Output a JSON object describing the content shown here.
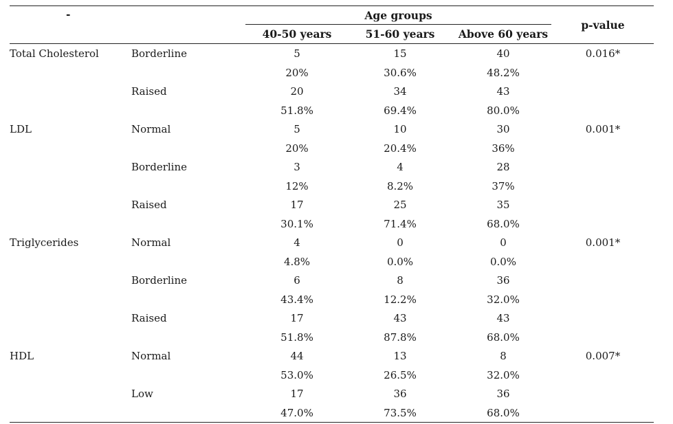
{
  "header": {
    "corner": "-",
    "group_title": "Age groups",
    "col_a": "40-50 years",
    "col_b": "51-60 years",
    "col_c": "Above 60 years",
    "pvalue": "p-value"
  },
  "rows": [
    {
      "param": "Total Cholesterol",
      "category": "Borderline",
      "a": "5",
      "b": "15",
      "c": "40",
      "p": "0.016*"
    },
    {
      "param": "",
      "category": "",
      "a": "20%",
      "b": "30.6%",
      "c": "48.2%",
      "p": ""
    },
    {
      "param": "",
      "category": "Raised",
      "a": "20",
      "b": "34",
      "c": "43",
      "p": ""
    },
    {
      "param": "",
      "category": "",
      "a": "51.8%",
      "b": "69.4%",
      "c": "80.0%",
      "p": ""
    },
    {
      "param": "LDL",
      "category": "Normal",
      "a": "5",
      "b": "10",
      "c": "30",
      "p": "0.001*"
    },
    {
      "param": "",
      "category": "",
      "a": "20%",
      "b": "20.4%",
      "c": "36%",
      "p": ""
    },
    {
      "param": "",
      "category": "Borderline",
      "a": "3",
      "b": "4",
      "c": "28",
      "p": ""
    },
    {
      "param": "",
      "category": "",
      "a": "12%",
      "b": "8.2%",
      "c": "37%",
      "p": ""
    },
    {
      "param": "",
      "category": "Raised",
      "a": "17",
      "b": "25",
      "c": "35",
      "p": ""
    },
    {
      "param": "",
      "category": "",
      "a": "30.1%",
      "b": "71.4%",
      "c": "68.0%",
      "p": ""
    },
    {
      "param": "Triglycerides",
      "category": "Normal",
      "a": "4",
      "b": "0",
      "c": "0",
      "p": "0.001*"
    },
    {
      "param": "",
      "category": "",
      "a": "4.8%",
      "b": "0.0%",
      "c": "0.0%",
      "p": ""
    },
    {
      "param": "",
      "category": "Borderline",
      "a": "6",
      "b": "8",
      "c": "36",
      "p": ""
    },
    {
      "param": "",
      "category": "",
      "a": "43.4%",
      "b": "12.2%",
      "c": "32.0%",
      "p": ""
    },
    {
      "param": "",
      "category": "Raised",
      "a": "17",
      "b": "43",
      "c": "43",
      "p": ""
    },
    {
      "param": "",
      "category": "",
      "a": "51.8%",
      "b": "87.8%",
      "c": "68.0%",
      "p": ""
    },
    {
      "param": "HDL",
      "category": "Normal",
      "a": "44",
      "b": "13",
      "c": "8",
      "p": "0.007*"
    },
    {
      "param": "",
      "category": "",
      "a": "53.0%",
      "b": "26.5%",
      "c": "32.0%",
      "p": ""
    },
    {
      "param": "",
      "category": "Low",
      "a": "17",
      "b": "36",
      "c": "36",
      "p": ""
    },
    {
      "param": "",
      "category": "",
      "a": "47.0%",
      "b": "73.5%",
      "c": "68.0%",
      "p": ""
    }
  ]
}
